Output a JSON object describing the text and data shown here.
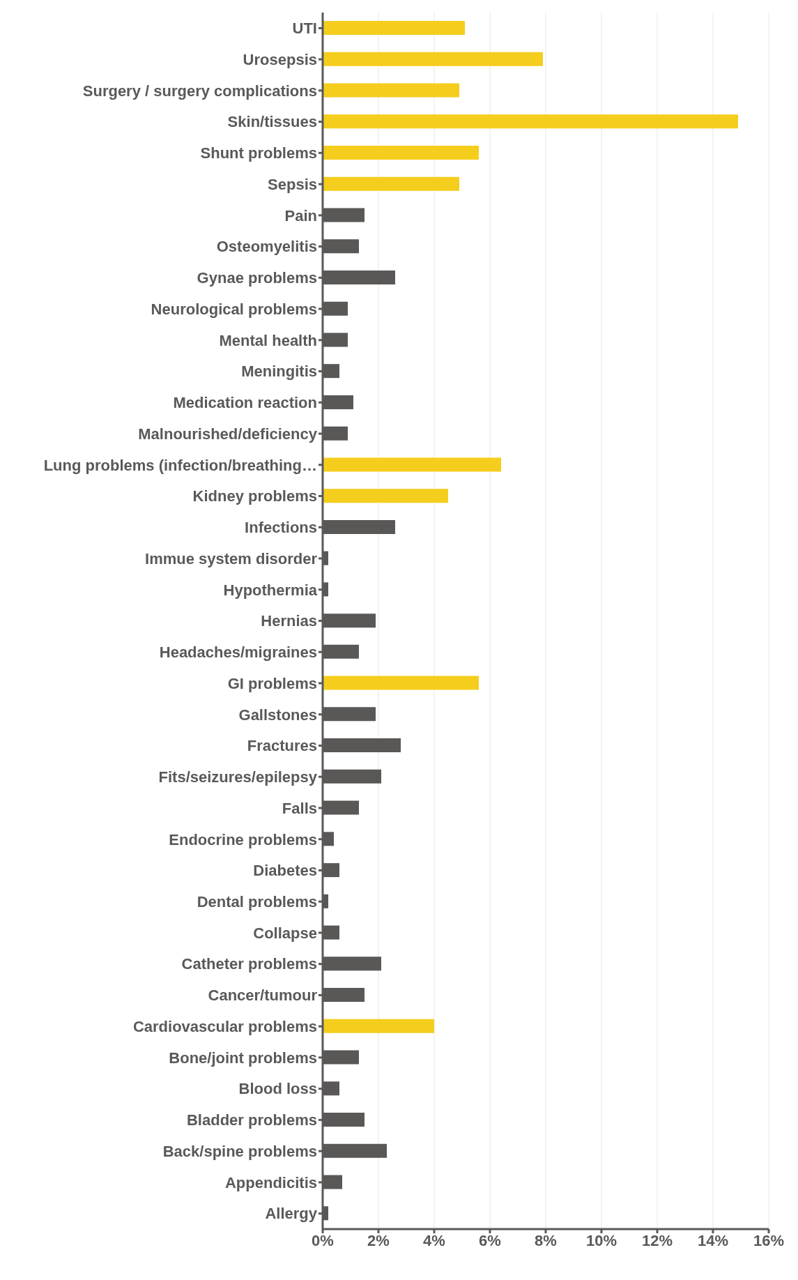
{
  "chart_data": {
    "type": "bar",
    "orientation": "horizontal",
    "categories": [
      "UTI",
      "Urosepsis",
      "Surgery / surgery complications",
      "Skin/tissues",
      "Shunt problems",
      "Sepsis",
      "Pain",
      "Osteomyelitis",
      "Gynae problems",
      "Neurological problems",
      "Mental health",
      "Meningitis",
      "Medication reaction",
      "Malnourished/deficiency",
      "Lung problems (infection/breathing…",
      "Kidney problems",
      "Infections",
      "Immue system disorder",
      "Hypothermia",
      "Hernias",
      "Headaches/migraines",
      "GI problems",
      "Gallstones",
      "Fractures",
      "Fits/seizures/epilepsy",
      "Falls",
      "Endocrine problems",
      "Diabetes",
      "Dental problems",
      "Collapse",
      "Catheter problems",
      "Cancer/tumour",
      "Cardiovascular problems",
      "Bone/joint problems",
      "Blood loss",
      "Bladder problems",
      "Back/spine problems",
      "Appendicitis",
      "Allergy"
    ],
    "values": [
      5.1,
      7.9,
      4.9,
      14.9,
      5.6,
      4.9,
      1.5,
      1.3,
      2.6,
      0.9,
      0.9,
      0.6,
      1.1,
      0.9,
      6.4,
      4.5,
      2.6,
      0.2,
      0.2,
      1.9,
      1.3,
      5.6,
      1.9,
      2.8,
      2.1,
      1.3,
      0.4,
      0.6,
      0.2,
      0.6,
      2.1,
      1.5,
      4.0,
      1.3,
      0.6,
      1.5,
      2.3,
      0.7,
      0.2
    ],
    "colors": [
      "#f5cd1d",
      "#f5cd1d",
      "#f5cd1d",
      "#f5cd1d",
      "#f5cd1d",
      "#f5cd1d",
      "#5a5856",
      "#5a5856",
      "#5a5856",
      "#5a5856",
      "#5a5856",
      "#5a5856",
      "#5a5856",
      "#5a5856",
      "#f5cd1d",
      "#f5cd1d",
      "#5a5856",
      "#5a5856",
      "#5a5856",
      "#5a5856",
      "#5a5856",
      "#f5cd1d",
      "#5a5856",
      "#5a5856",
      "#5a5856",
      "#5a5856",
      "#5a5856",
      "#5a5856",
      "#5a5856",
      "#5a5856",
      "#5a5856",
      "#5a5856",
      "#f5cd1d",
      "#5a5856",
      "#5a5856",
      "#5a5856",
      "#5a5856",
      "#5a5856",
      "#5a5856"
    ],
    "xlim": [
      0,
      16
    ],
    "xticks": [
      {
        "value": 0,
        "label": "0%"
      },
      {
        "value": 2,
        "label": "2%"
      },
      {
        "value": 4,
        "label": "4%"
      },
      {
        "value": 6,
        "label": "6%"
      },
      {
        "value": 8,
        "label": "8%"
      },
      {
        "value": 10,
        "label": "10%"
      },
      {
        "value": 12,
        "label": "12%"
      },
      {
        "value": 14,
        "label": "14%"
      },
      {
        "value": 16,
        "label": "16%"
      }
    ],
    "grid": "x"
  }
}
